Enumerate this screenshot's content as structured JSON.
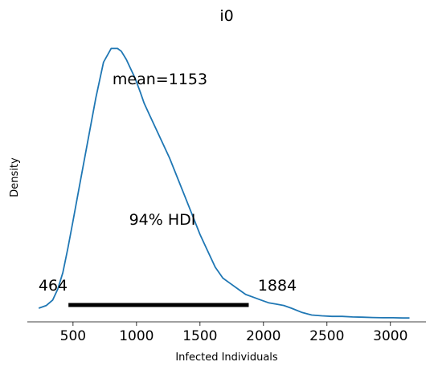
{
  "chart_data": {
    "type": "line",
    "title": "i0",
    "xlabel": "Infected Individuals",
    "ylabel": "Density",
    "xlim": [
      140,
      3280
    ],
    "ylim": [
      0,
      1.06
    ],
    "x_ticks": [
      500,
      1000,
      1500,
      2000,
      2500,
      3000
    ],
    "grid": false,
    "series": [
      {
        "color": "#1f77b4",
        "x": [
          230,
          290,
          340,
          380,
          420,
          460,
          500,
          560,
          620,
          680,
          740,
          800,
          850,
          880,
          920,
          950,
          990,
          1030,
          1060,
          1100,
          1150,
          1200,
          1260,
          1320,
          1380,
          1440,
          1500,
          1560,
          1620,
          1680,
          1740,
          1800,
          1860,
          1920,
          1980,
          2040,
          2100,
          2160,
          2220,
          2300,
          2380,
          2460,
          2540,
          2620,
          2700,
          2780,
          2860,
          2940,
          3020,
          3100,
          3150
        ],
        "y": [
          0.05,
          0.06,
          0.08,
          0.12,
          0.18,
          0.27,
          0.37,
          0.52,
          0.67,
          0.82,
          0.95,
          1.0,
          1.0,
          0.99,
          0.96,
          0.93,
          0.89,
          0.84,
          0.8,
          0.76,
          0.71,
          0.66,
          0.6,
          0.53,
          0.46,
          0.39,
          0.32,
          0.26,
          0.2,
          0.16,
          0.14,
          0.12,
          0.1,
          0.09,
          0.08,
          0.07,
          0.065,
          0.06,
          0.05,
          0.035,
          0.025,
          0.022,
          0.02,
          0.02,
          0.018,
          0.017,
          0.016,
          0.015,
          0.015,
          0.014,
          0.014
        ]
      }
    ],
    "hdi": {
      "low": 464,
      "high": 1884,
      "low_label": "464",
      "high_label": "1884",
      "label": "94% HDI",
      "color": "#000000"
    },
    "mean_label": "mean=1153",
    "mean": 1153
  }
}
